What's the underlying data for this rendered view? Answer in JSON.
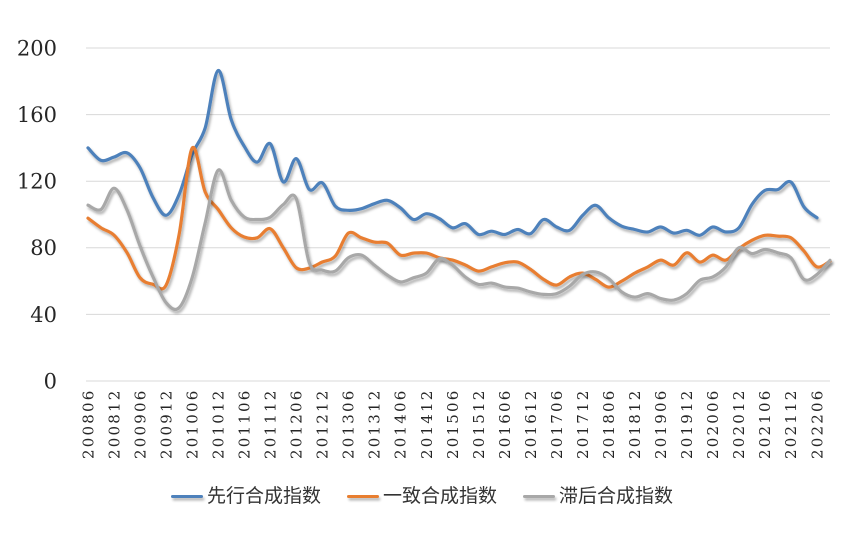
{
  "chart_data": {
    "type": "line",
    "title": "",
    "smooth": true,
    "grid": "horizontal",
    "legend_position": "bottom",
    "ylim": [
      0,
      200
    ],
    "y_ticks": [
      0,
      40,
      80,
      120,
      160,
      200
    ],
    "x_tick_labels": [
      "200806",
      "200812",
      "200906",
      "200912",
      "201006",
      "201012",
      "201106",
      "201112",
      "201206",
      "201212",
      "201306",
      "201312",
      "201406",
      "201412",
      "201506",
      "201512",
      "201606",
      "201612",
      "201706",
      "201712",
      "201806",
      "201812",
      "201906",
      "201912",
      "202006",
      "202012",
      "202106",
      "202112",
      "202206"
    ],
    "x": [
      "200806",
      "200809",
      "200812",
      "200903",
      "200906",
      "200909",
      "200912",
      "201003",
      "201006",
      "201009",
      "201012",
      "201103",
      "201106",
      "201109",
      "201112",
      "201203",
      "201206",
      "201209",
      "201212",
      "201303",
      "201306",
      "201309",
      "201312",
      "201403",
      "201406",
      "201409",
      "201412",
      "201503",
      "201506",
      "201509",
      "201512",
      "201603",
      "201606",
      "201609",
      "201612",
      "201703",
      "201706",
      "201709",
      "201712",
      "201803",
      "201806",
      "201809",
      "201812",
      "201903",
      "201906",
      "201909",
      "201912",
      "202003",
      "202006",
      "202009",
      "202012",
      "202103",
      "202106",
      "202109",
      "202112",
      "202203",
      "202206",
      "202209"
    ],
    "series": [
      {
        "id": "leading",
        "name": "先行合成指数",
        "color": "#4E81BB",
        "values": [
          140,
          132.5,
          134.5,
          137,
          128,
          110,
          99.5,
          112,
          136,
          152,
          186.5,
          157,
          141,
          131.5,
          142.5,
          119.5,
          133.5,
          115,
          119,
          105,
          102.5,
          103.5,
          106.5,
          108.5,
          104,
          97,
          100.5,
          97.5,
          92,
          94.5,
          88,
          90,
          88,
          91,
          88.5,
          97,
          92.5,
          90.5,
          99.5,
          105.5,
          98,
          93,
          91,
          89.5,
          92.5,
          88.8,
          90.5,
          87.5,
          92.5,
          89.5,
          92,
          106,
          114.5,
          115,
          119.5,
          104.5,
          98,
          null
        ]
      },
      {
        "id": "coincident",
        "name": "一致合成指数",
        "color": "#E87E30",
        "values": [
          97.8,
          92,
          87.6,
          77,
          62,
          58,
          57.6,
          88,
          139.8,
          113.5,
          103,
          92,
          86.5,
          86,
          91.5,
          80,
          68,
          67.8,
          71.5,
          75,
          88.8,
          86,
          83.4,
          82.8,
          75.6,
          76.8,
          76.8,
          74,
          72.6,
          69.6,
          66,
          68.5,
          71,
          71.4,
          67,
          61,
          57.6,
          62.5,
          64.8,
          61,
          56.4,
          60,
          64.8,
          68.5,
          72.6,
          69.6,
          77,
          71.4,
          75.6,
          72.6,
          79.5,
          84.5,
          87.5,
          87,
          86,
          78,
          68.5,
          72
        ]
      },
      {
        "id": "lagging",
        "name": "滞后合成指数",
        "color": "#A8A8A8",
        "values": [
          105.6,
          103,
          115.8,
          102.6,
          81,
          62.4,
          47,
          44,
          62,
          95,
          126.6,
          108.6,
          98.5,
          97,
          98.4,
          106,
          109.5,
          71,
          66.6,
          66,
          74,
          75.6,
          69.6,
          63.6,
          59.5,
          62,
          64.8,
          73.5,
          69.6,
          62.4,
          58,
          58.8,
          56.5,
          55.8,
          53.5,
          52,
          52.5,
          57,
          64,
          65.5,
          61.5,
          53.5,
          50.4,
          52.5,
          49.5,
          48.6,
          52.5,
          60.5,
          62.5,
          68.5,
          80,
          76.5,
          79,
          77,
          74,
          61,
          64,
          72.5
        ]
      }
    ]
  }
}
